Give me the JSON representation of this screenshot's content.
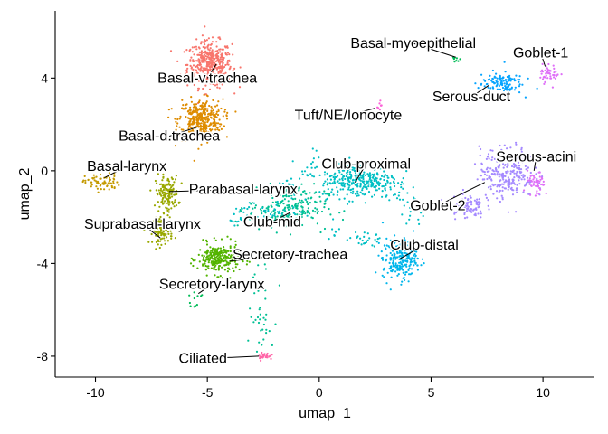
{
  "chart_data": {
    "type": "scatter",
    "title": "",
    "xlabel": "umap_1",
    "ylabel": "umap_2",
    "xlim": [
      -11.8,
      12.3
    ],
    "ylim": [
      -8.9,
      6.9
    ],
    "xticks": [
      -10,
      -5,
      0,
      5,
      10
    ],
    "yticks": [
      -8,
      -4,
      0,
      4
    ],
    "xtick_labels": [
      "-10",
      "-5",
      "0",
      "5",
      "10"
    ],
    "ytick_labels": [
      "-8",
      "-4",
      "0",
      "4"
    ],
    "grid": false,
    "legend": "none",
    "clusters": [
      {
        "name": "Basal-v.trachea",
        "color": "#F8766D",
        "x": -4.9,
        "y": 4.6,
        "sx": 0.9,
        "sy": 0.9,
        "n": 420,
        "label_x": -5.0,
        "label_y": 3.8,
        "anchor_x": -4.6,
        "anchor_y": 4.6
      },
      {
        "name": "Basal-d.trachea",
        "color": "#DE8C00",
        "x": -5.3,
        "y": 2.2,
        "sx": 0.9,
        "sy": 0.8,
        "n": 380,
        "label_x": -6.7,
        "label_y": 1.3,
        "anchor_x": -5.4,
        "anchor_y": 1.9
      },
      {
        "name": "Basal-larynx",
        "color": "#C49A00",
        "x": -9.7,
        "y": -0.5,
        "sx": 0.7,
        "sy": 0.35,
        "n": 70,
        "label_x": -8.6,
        "label_y": 0.0,
        "anchor_x": -9.6,
        "anchor_y": -0.3
      },
      {
        "name": "Parabasal-larynx",
        "color": "#99A800",
        "x": -6.8,
        "y": -1.0,
        "sx": 0.45,
        "sy": 0.7,
        "n": 150,
        "label_x": -3.4,
        "label_y": -1.0,
        "anchor_x": -6.7,
        "anchor_y": -0.9
      },
      {
        "name": "Suprabasal-larynx",
        "color": "#99A800",
        "x": -7.0,
        "y": -2.6,
        "sx": 0.4,
        "sy": 0.5,
        "n": 100,
        "label_x": -7.9,
        "label_y": -2.5,
        "anchor_x": -7.1,
        "anchor_y": -2.9
      },
      {
        "name": "Secretory-trachea",
        "color": "#53B400",
        "x": -4.5,
        "y": -3.8,
        "sx": 0.85,
        "sy": 0.6,
        "n": 260,
        "label_x": -1.3,
        "label_y": -3.8,
        "anchor_x": -4.0,
        "anchor_y": -3.9
      },
      {
        "name": "Secretory-larynx",
        "color": "#00BC56",
        "x": -5.6,
        "y": -5.5,
        "sx": 0.3,
        "sy": 0.3,
        "n": 12,
        "label_x": -4.8,
        "label_y": -5.1,
        "anchor_x": -5.4,
        "anchor_y": -5.3
      },
      {
        "name": "Club-mid",
        "color": "#00C094",
        "x": -1.4,
        "y": -1.6,
        "sx": 1.6,
        "sy": 0.9,
        "n": 230,
        "label_x": -2.1,
        "label_y": -2.4,
        "anchor_x": -1.3,
        "anchor_y": -1.8
      },
      {
        "name": "Club-proximal",
        "color": "#00BFC4",
        "x": 1.8,
        "y": -0.4,
        "sx": 1.6,
        "sy": 0.7,
        "n": 320,
        "label_x": 2.1,
        "label_y": 0.1,
        "anchor_x": 1.6,
        "anchor_y": -0.5
      },
      {
        "name": "Club-distal",
        "color": "#00B6EB",
        "x": 3.6,
        "y": -3.8,
        "sx": 0.7,
        "sy": 0.8,
        "n": 230,
        "label_x": 4.7,
        "label_y": -3.4,
        "anchor_x": 3.6,
        "anchor_y": -3.8
      },
      {
        "name": "Serous-duct",
        "color": "#06A4FF",
        "x": 8.1,
        "y": 3.8,
        "sx": 0.9,
        "sy": 0.45,
        "n": 120,
        "label_x": 6.8,
        "label_y": 3.0,
        "anchor_x": 7.6,
        "anchor_y": 3.7
      },
      {
        "name": "Serous-acini",
        "color": "#A58AFF",
        "x": 8.4,
        "y": -0.1,
        "sx": 1.1,
        "sy": 1.0,
        "n": 260,
        "label_x": 9.7,
        "label_y": 0.4,
        "anchor_x": 9.6,
        "anchor_y": 0.0
      },
      {
        "name": "Goblet-2",
        "color": "#A58AFF",
        "x": 6.6,
        "y": -1.5,
        "sx": 0.7,
        "sy": 0.5,
        "n": 90,
        "label_x": 5.3,
        "label_y": -1.7,
        "anchor_x": 7.4,
        "anchor_y": -0.5
      },
      {
        "name": "Goblet-1",
        "color": "#DF70F8",
        "x": 10.3,
        "y": 4.2,
        "sx": 0.4,
        "sy": 0.35,
        "n": 45,
        "label_x": 9.9,
        "label_y": 4.9,
        "anchor_x": 10.1,
        "anchor_y": 4.5
      },
      {
        "name": "Serous-acini",
        "color": "#DF70F8",
        "x": 9.7,
        "y": -0.6,
        "sx": 0.35,
        "sy": 0.5,
        "n": 50,
        "label_x": null,
        "label_y": null,
        "anchor_x": null,
        "anchor_y": null
      },
      {
        "name": "Basal-myoepithelial",
        "color": "#00BC56",
        "x": 6.1,
        "y": 4.8,
        "sx": 0.15,
        "sy": 0.15,
        "n": 8,
        "label_x": 4.2,
        "label_y": 5.3,
        "anchor_x": 6.1,
        "anchor_y": 4.9
      },
      {
        "name": "Tuft/NE/Ionocyte",
        "color": "#FB61D7",
        "x": 2.7,
        "y": 2.8,
        "sx": 0.1,
        "sy": 0.25,
        "n": 8,
        "label_x": 1.3,
        "label_y": 2.2,
        "anchor_x": 2.5,
        "anchor_y": 2.7
      },
      {
        "name": "Ciliated",
        "color": "#FF66A8",
        "x": -2.4,
        "y": -8.0,
        "sx": 0.3,
        "sy": 0.15,
        "n": 25,
        "label_x": -5.2,
        "label_y": -8.3,
        "anchor_x": -2.7,
        "anchor_y": -8.0
      }
    ],
    "bridges": [
      {
        "color": "#00BFC4",
        "from": [
          -3.8,
          -2.0
        ],
        "to": [
          -0.5,
          -1.5
        ],
        "n": 60
      },
      {
        "color": "#00C094",
        "from": [
          -2.6,
          -4.2
        ],
        "to": [
          -2.6,
          -7.6
        ],
        "n": 40
      },
      {
        "color": "#00BFC4",
        "from": [
          0.5,
          -2.5
        ],
        "to": [
          3.0,
          -3.2
        ],
        "n": 35
      },
      {
        "color": "#00BFC4",
        "from": [
          3.4,
          -0.6
        ],
        "to": [
          4.6,
          -2.2
        ],
        "n": 30
      },
      {
        "color": "#00BFC4",
        "from": [
          -2.0,
          -1.0
        ],
        "to": [
          0.4,
          0.7
        ],
        "n": 30
      }
    ]
  }
}
